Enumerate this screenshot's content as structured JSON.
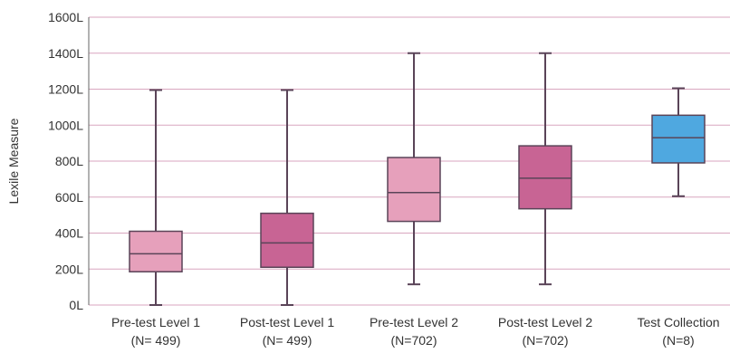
{
  "chart_data": {
    "type": "box",
    "ylabel": "Lexile Measure",
    "ylim": [
      0,
      1600
    ],
    "yticks": [
      0,
      200,
      400,
      600,
      800,
      1000,
      1200,
      1400,
      1600
    ],
    "ytick_labels": [
      "0L",
      "200L",
      "400L",
      "600L",
      "800L",
      "1000L",
      "1200L",
      "1400L",
      "1600L"
    ],
    "grid": true,
    "grid_color": "#d9a6bf",
    "boxes": [
      {
        "label": "Pre-test Level 1",
        "sublabel": "(N= 499)",
        "min": 0,
        "q1": 185,
        "median": 285,
        "q3": 410,
        "max": 1195,
        "color": "#e6a0bb"
      },
      {
        "label": "Post-test Level 1",
        "sublabel": "(N= 499)",
        "min": 0,
        "q1": 210,
        "median": 345,
        "q3": 510,
        "max": 1195,
        "color": "#c86494"
      },
      {
        "label": "Pre-test Level 2",
        "sublabel": "(N=702)",
        "min": 115,
        "q1": 465,
        "median": 625,
        "q3": 820,
        "max": 1400,
        "color": "#e6a0bb"
      },
      {
        "label": "Post-test Level 2",
        "sublabel": "(N=702)",
        "min": 115,
        "q1": 535,
        "median": 705,
        "q3": 885,
        "max": 1400,
        "color": "#c86494"
      },
      {
        "label": "Test Collection",
        "sublabel": "(N=8)",
        "min": 605,
        "q1": 790,
        "median": 930,
        "q3": 1055,
        "max": 1205,
        "color": "#4fa8e0"
      }
    ]
  }
}
